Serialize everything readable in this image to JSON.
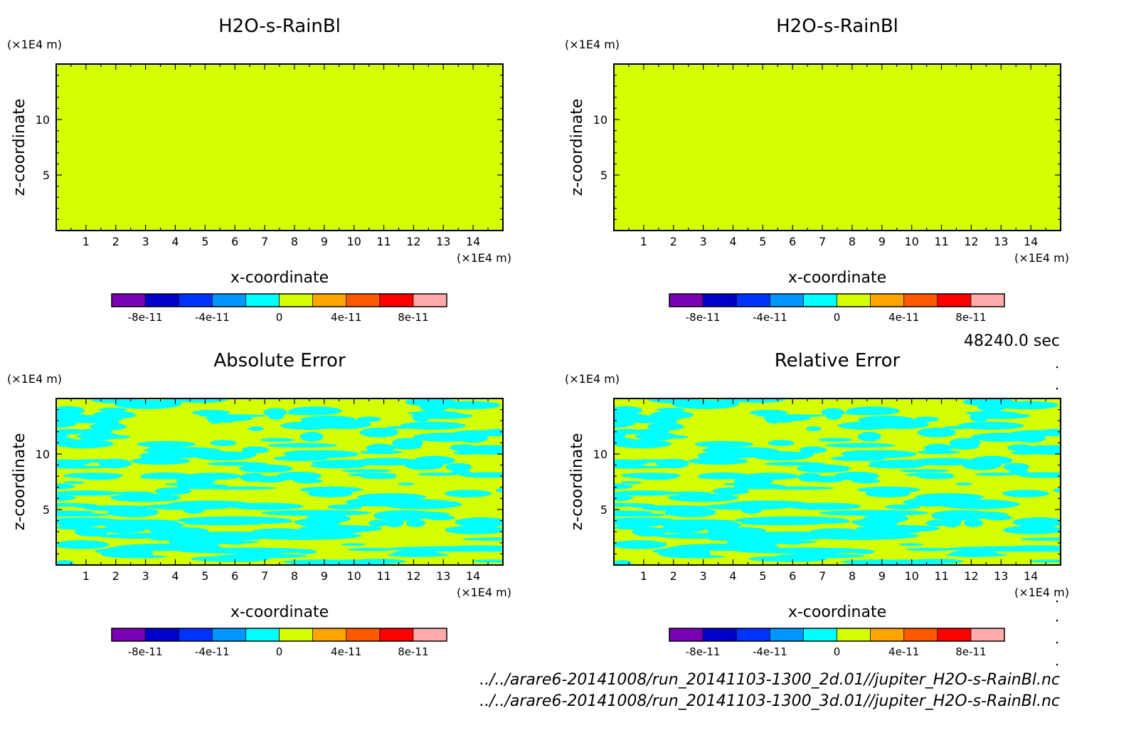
{
  "chart_data": [
    {
      "type": "heatmap",
      "title": "H2O-s-RainBl",
      "xlabel": "x-coordinate",
      "ylabel": "z-coordinate",
      "x_unit": "(×1E4 m)",
      "z_unit": "(×1E4 m)",
      "xlim": [
        0,
        15
      ],
      "zlim": [
        0,
        15
      ],
      "x_ticks": [
        1,
        2,
        3,
        4,
        5,
        6,
        7,
        8,
        9,
        10,
        11,
        12,
        13,
        14
      ],
      "z_ticks": [
        5,
        10
      ],
      "field": "uniform",
      "fill_color": "#d4ff00",
      "colorbar_labels": [
        "-8e-11",
        "-4e-11",
        "0",
        "4e-11",
        "8e-11"
      ]
    },
    {
      "type": "heatmap",
      "title": "H2O-s-RainBl",
      "xlabel": "x-coordinate",
      "ylabel": "z-coordinate",
      "x_unit": "(×1E4 m)",
      "z_unit": "(×1E4 m)",
      "xlim": [
        0,
        15
      ],
      "zlim": [
        0,
        15
      ],
      "x_ticks": [
        1,
        2,
        3,
        4,
        5,
        6,
        7,
        8,
        9,
        10,
        11,
        12,
        13,
        14
      ],
      "z_ticks": [
        5,
        10
      ],
      "field": "uniform",
      "fill_color": "#d4ff00",
      "colorbar_labels": [
        "-8e-11",
        "-4e-11",
        "0",
        "4e-11",
        "8e-11"
      ]
    },
    {
      "type": "heatmap",
      "title": "Absolute Error",
      "xlabel": "x-coordinate",
      "ylabel": "z-coordinate",
      "x_unit": "(×1E4 m)",
      "z_unit": "(×1E4 m)",
      "xlim": [
        0,
        15
      ],
      "zlim": [
        0,
        15
      ],
      "x_ticks": [
        1,
        2,
        3,
        4,
        5,
        6,
        7,
        8,
        9,
        10,
        11,
        12,
        13,
        14
      ],
      "z_ticks": [
        5,
        10
      ],
      "field": "noise",
      "fill_color": "#d4ff00",
      "noise_color": "#00ffff",
      "colorbar_labels": [
        "-8e-11",
        "-4e-11",
        "0",
        "4e-11",
        "8e-11"
      ]
    },
    {
      "type": "heatmap",
      "title": "Relative Error",
      "xlabel": "x-coordinate",
      "ylabel": "z-coordinate",
      "x_unit": "(×1E4 m)",
      "z_unit": "(×1E4 m)",
      "xlim": [
        0,
        15
      ],
      "zlim": [
        0,
        15
      ],
      "x_ticks": [
        1,
        2,
        3,
        4,
        5,
        6,
        7,
        8,
        9,
        10,
        11,
        12,
        13,
        14
      ],
      "z_ticks": [
        5,
        10
      ],
      "field": "noise",
      "fill_color": "#d4ff00",
      "noise_color": "#00ffff",
      "colorbar_labels": [
        "-8e-11",
        "-4e-11",
        "0",
        "4e-11",
        "8e-11"
      ]
    }
  ],
  "colorbar_colors": [
    "#7a00b4",
    "#0000c8",
    "#0032ff",
    "#0096ff",
    "#00ffff",
    "#d4ff00",
    "#ffa500",
    "#ff5a00",
    "#ff0000",
    "#ffaaaa"
  ],
  "time_label": "48240.0 sec",
  "file_paths": [
    "../../arare6-20141008/run_20141103-1300_2d.01//jupiter_H2O-s-RainBl.nc",
    "../../arare6-20141008/run_20141103-1300_3d.01//jupiter_H2O-s-RainBl.nc"
  ]
}
